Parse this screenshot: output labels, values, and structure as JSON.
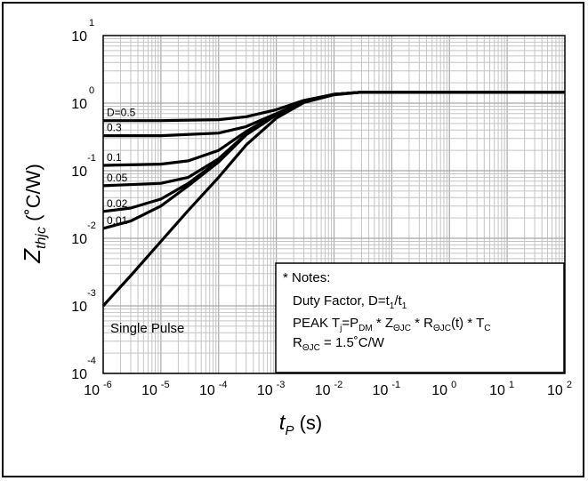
{
  "chart_data": {
    "type": "line",
    "xscale": "log",
    "yscale": "log",
    "xlim": [
      1e-06,
      100
    ],
    "ylim": [
      0.0001,
      10
    ],
    "grid": true,
    "xlabel": {
      "main": "t",
      "sub": "P",
      "unit": " (s)"
    },
    "ylabel": {
      "main": "Z",
      "sub": "thjc",
      "unit": " (˚C/W)"
    },
    "x_ticks": [
      {
        "value": 1e-06,
        "base": "10",
        "exp": "-6"
      },
      {
        "value": 1e-05,
        "base": "10",
        "exp": "-5"
      },
      {
        "value": 0.0001,
        "base": "10",
        "exp": "-4"
      },
      {
        "value": 0.001,
        "base": "10",
        "exp": "-3"
      },
      {
        "value": 0.01,
        "base": "10",
        "exp": "-2"
      },
      {
        "value": 0.1,
        "base": "10",
        "exp": "-1"
      },
      {
        "value": 1,
        "base": "10",
        "exp": "0"
      },
      {
        "value": 10,
        "base": "10",
        "exp": "1"
      },
      {
        "value": 100,
        "base": "10",
        "exp": "2"
      }
    ],
    "y_ticks": [
      {
        "value": 0.0001,
        "base": "10",
        "exp": "-4"
      },
      {
        "value": 0.001,
        "base": "10",
        "exp": "-3"
      },
      {
        "value": 0.01,
        "base": "10",
        "exp": "-2"
      },
      {
        "value": 0.1,
        "base": "10",
        "exp": "-1"
      },
      {
        "value": 1,
        "base": "10",
        "exp": "0"
      },
      {
        "value": 10,
        "base": "10",
        "exp": "1"
      }
    ],
    "series": [
      {
        "name": "D=0.5",
        "label": "D=0.5",
        "points": [
          [
            1e-06,
            0.55
          ],
          [
            1e-05,
            0.55
          ],
          [
            0.0001,
            0.57
          ],
          [
            0.0003,
            0.63
          ],
          [
            0.001,
            0.8
          ],
          [
            0.003,
            1.1
          ],
          [
            0.01,
            1.35
          ],
          [
            0.03,
            1.45
          ],
          [
            100,
            1.45
          ]
        ]
      },
      {
        "name": "0.3",
        "label": "0.3",
        "points": [
          [
            1e-06,
            0.33
          ],
          [
            1e-05,
            0.33
          ],
          [
            0.0001,
            0.36
          ],
          [
            0.0003,
            0.45
          ],
          [
            0.001,
            0.7
          ],
          [
            0.003,
            1.05
          ],
          [
            0.01,
            1.35
          ],
          [
            0.03,
            1.45
          ],
          [
            100,
            1.45
          ]
        ]
      },
      {
        "name": "0.1",
        "label": "0.1",
        "points": [
          [
            1e-06,
            0.12
          ],
          [
            1e-05,
            0.125
          ],
          [
            3e-05,
            0.14
          ],
          [
            0.0001,
            0.2
          ],
          [
            0.0003,
            0.38
          ],
          [
            0.001,
            0.68
          ],
          [
            0.003,
            1.05
          ],
          [
            0.01,
            1.35
          ],
          [
            0.03,
            1.45
          ],
          [
            100,
            1.45
          ]
        ]
      },
      {
        "name": "0.05",
        "label": "0.05",
        "points": [
          [
            1e-06,
            0.06
          ],
          [
            1e-05,
            0.065
          ],
          [
            3e-05,
            0.08
          ],
          [
            0.0001,
            0.15
          ],
          [
            0.0003,
            0.35
          ],
          [
            0.001,
            0.67
          ],
          [
            0.003,
            1.05
          ],
          [
            0.01,
            1.35
          ],
          [
            0.03,
            1.45
          ],
          [
            100,
            1.45
          ]
        ]
      },
      {
        "name": "0.02",
        "label": "0.02",
        "points": [
          [
            1e-06,
            0.025
          ],
          [
            3e-06,
            0.028
          ],
          [
            1e-05,
            0.038
          ],
          [
            3e-05,
            0.065
          ],
          [
            0.0001,
            0.14
          ],
          [
            0.0003,
            0.34
          ],
          [
            0.001,
            0.67
          ],
          [
            0.003,
            1.05
          ],
          [
            0.01,
            1.35
          ],
          [
            0.03,
            1.45
          ],
          [
            100,
            1.45
          ]
        ]
      },
      {
        "name": "0.01",
        "label": "0.01",
        "points": [
          [
            1e-06,
            0.014
          ],
          [
            3e-06,
            0.018
          ],
          [
            1e-05,
            0.03
          ],
          [
            3e-05,
            0.06
          ],
          [
            0.0001,
            0.135
          ],
          [
            0.0003,
            0.34
          ],
          [
            0.001,
            0.67
          ],
          [
            0.003,
            1.05
          ],
          [
            0.01,
            1.35
          ],
          [
            0.03,
            1.45
          ],
          [
            100,
            1.45
          ]
        ]
      },
      {
        "name": "Single Pulse",
        "label": "Single Pulse",
        "points": [
          [
            1e-06,
            0.001
          ],
          [
            3e-06,
            0.0028
          ],
          [
            1e-05,
            0.009
          ],
          [
            3e-05,
            0.026
          ],
          [
            0.0001,
            0.08
          ],
          [
            0.0003,
            0.24
          ],
          [
            0.001,
            0.6
          ],
          [
            0.003,
            1.02
          ],
          [
            0.01,
            1.33
          ],
          [
            0.03,
            1.45
          ],
          [
            100,
            1.45
          ]
        ]
      }
    ],
    "notes": {
      "title": "* Notes:",
      "line1": {
        "prefix": "Duty Factor, D=t",
        "s1": "1",
        "mid": "/t",
        "s2": "1"
      },
      "line2": {
        "t1": "PEAK T",
        "s1": "j",
        "t2": "=P",
        "s2": "DM",
        "t3": " * Z",
        "s3": "ΘJC",
        "t4": " * R",
        "s4": "ΘJC",
        "t5": "(t) * T",
        "s5": "C"
      },
      "line3": {
        "t1": "R",
        "s1": "ΘJC",
        "t2": " = 1.5˚C/W"
      }
    }
  }
}
